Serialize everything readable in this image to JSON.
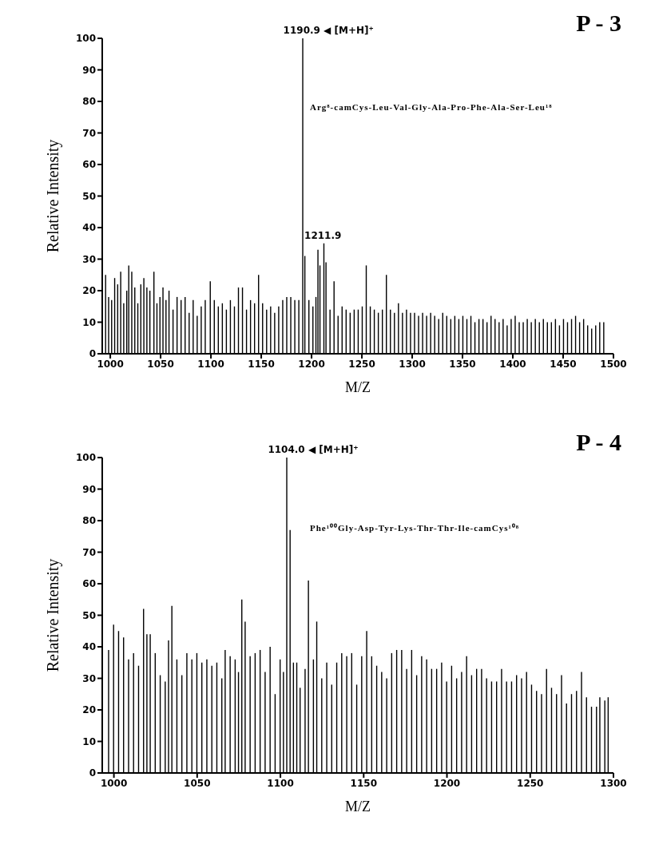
{
  "chart_data": [
    {
      "type": "bar",
      "title": "P - 3",
      "xlabel": "M/Z",
      "ylabel": "Relative  Intensity",
      "x": [
        995,
        998,
        1001,
        1004,
        1007,
        1010,
        1013,
        1016,
        1018,
        1021,
        1024,
        1027,
        1030,
        1033,
        1036,
        1039,
        1043,
        1046,
        1049,
        1052,
        1055,
        1058,
        1062,
        1066,
        1070,
        1074,
        1078,
        1082,
        1086,
        1090,
        1094,
        1099,
        1103,
        1107,
        1111,
        1115,
        1119,
        1123,
        1127,
        1131,
        1135,
        1139,
        1143,
        1147,
        1151,
        1155,
        1159,
        1163,
        1167,
        1171,
        1175,
        1179,
        1183,
        1187,
        1190.9,
        1193,
        1197,
        1201,
        1204,
        1206,
        1208,
        1211.9,
        1214,
        1218,
        1222,
        1226,
        1230,
        1234,
        1238,
        1242,
        1246,
        1250,
        1254,
        1258,
        1262,
        1266,
        1270,
        1274,
        1278,
        1282,
        1286,
        1290,
        1294,
        1298,
        1302,
        1306,
        1310,
        1314,
        1318,
        1322,
        1326,
        1330,
        1334,
        1338,
        1342,
        1346,
        1350,
        1354,
        1358,
        1362,
        1366,
        1370,
        1374,
        1378,
        1382,
        1386,
        1390,
        1394,
        1398,
        1402,
        1406,
        1410,
        1414,
        1418,
        1422,
        1426,
        1430,
        1434,
        1438,
        1442,
        1446,
        1450,
        1454,
        1458,
        1462,
        1466,
        1470,
        1474,
        1478,
        1482,
        1486,
        1490
      ],
      "series": [
        {
          "color": "#000000",
          "values": [
            25,
            18,
            17,
            24,
            22,
            26,
            16,
            20,
            28,
            26,
            21,
            16,
            22,
            24,
            21,
            20,
            26,
            16,
            18,
            21,
            17,
            20,
            14,
            18,
            17,
            18,
            13,
            17,
            12,
            15,
            17,
            23,
            17,
            15,
            16,
            14,
            17,
            15,
            21,
            21,
            14,
            17,
            16,
            25,
            16,
            14,
            15,
            13,
            15,
            17,
            18,
            18,
            17,
            17,
            100,
            31,
            17,
            15,
            18,
            33,
            28,
            35,
            29,
            14,
            23,
            12,
            15,
            14,
            13,
            14,
            14,
            15,
            28,
            15,
            14,
            13,
            14,
            25,
            14,
            13,
            16,
            13,
            14,
            13,
            13,
            12,
            13,
            12,
            13,
            12,
            11,
            13,
            12,
            11,
            12,
            11,
            12,
            11,
            12,
            10,
            11,
            11,
            10,
            12,
            11,
            10,
            11,
            9,
            11,
            12,
            10,
            10,
            11,
            10,
            11,
            10,
            11,
            10,
            10,
            11,
            9,
            11,
            10,
            11,
            12,
            10,
            11,
            9,
            8,
            9,
            10,
            10
          ]
        }
      ],
      "xlim": [
        992,
        1500
      ],
      "xticks": [
        1000,
        1050,
        1100,
        1150,
        1200,
        1250,
        1300,
        1350,
        1400,
        1450,
        1500
      ],
      "ylim": [
        0,
        100
      ],
      "yticks": [
        0,
        10,
        20,
        30,
        40,
        50,
        60,
        70,
        80,
        90,
        100
      ],
      "annotations": [
        {
          "text": "1190.9 ◀ [M+H]⁺",
          "x": 1190.9,
          "y": 100
        },
        {
          "text": "1211.9",
          "x": 1211.9,
          "y": 35
        },
        "Arg⁸-camCys-Leu-Val-Gly-Ala-Pro-Phe-Ala-Ser-Leu¹⁸"
      ]
    },
    {
      "type": "bar",
      "title": "P - 4",
      "xlabel": "M/Z",
      "ylabel": "Relative  Intensity",
      "x": [
        997,
        1000,
        1003,
        1006,
        1009,
        1012,
        1015,
        1018,
        1020,
        1022,
        1025,
        1028,
        1031,
        1033,
        1035,
        1038,
        1041,
        1044,
        1047,
        1050,
        1053,
        1056,
        1059,
        1062,
        1065,
        1067,
        1070,
        1073,
        1075,
        1077,
        1079,
        1082,
        1085,
        1088,
        1091,
        1094,
        1097,
        1100,
        1102,
        1104,
        1106,
        1108,
        1110,
        1112,
        1115,
        1117,
        1120,
        1122,
        1125,
        1128,
        1131,
        1134,
        1137,
        1140,
        1143,
        1146,
        1149,
        1152,
        1155,
        1158,
        1161,
        1164,
        1167,
        1170,
        1173,
        1176,
        1179,
        1182,
        1185,
        1188,
        1191,
        1194,
        1197,
        1200,
        1203,
        1206,
        1209,
        1212,
        1215,
        1218,
        1221,
        1224,
        1227,
        1230,
        1233,
        1236,
        1239,
        1242,
        1245,
        1248,
        1251,
        1254,
        1257,
        1260,
        1263,
        1266,
        1269,
        1272,
        1275,
        1278,
        1281,
        1284,
        1287,
        1290,
        1292,
        1295,
        1297
      ],
      "series": [
        {
          "color": "#000000",
          "values": [
            39,
            47,
            45,
            43,
            36,
            38,
            34,
            52,
            44,
            44,
            38,
            31,
            29,
            42,
            53,
            36,
            31,
            38,
            36,
            38,
            35,
            36,
            34,
            35,
            30,
            39,
            37,
            36,
            32,
            55,
            48,
            37,
            38,
            39,
            32,
            40,
            25,
            36,
            32,
            100,
            77,
            35,
            35,
            27,
            33,
            61,
            36,
            48,
            30,
            35,
            28,
            35,
            38,
            37,
            38,
            28,
            37,
            45,
            37,
            34,
            32,
            30,
            38,
            39,
            39,
            33,
            39,
            31,
            37,
            36,
            33,
            33,
            35,
            29,
            34,
            30,
            32,
            37,
            31,
            33,
            33,
            30,
            29,
            29,
            33,
            29,
            29,
            31,
            30,
            32,
            28,
            26,
            25,
            33,
            27,
            25,
            31,
            22,
            25,
            26,
            32,
            24,
            21,
            21,
            24,
            23,
            24
          ]
        }
      ],
      "xlim": [
        993,
        1300
      ],
      "xticks": [
        1000,
        1050,
        1100,
        1150,
        1200,
        1250,
        1300
      ],
      "ylim": [
        0,
        100
      ],
      "yticks": [
        0,
        10,
        20,
        30,
        40,
        50,
        60,
        70,
        80,
        90,
        100
      ],
      "annotations": [
        {
          "text": "1104.0 ◀ [M+H]⁺",
          "x": 1104,
          "y": 100
        },
        "Phe¹⁰⁰Gly-Asp-Tyr-Lys-Thr-Thr-Ile-camCys¹⁰⁸"
      ]
    }
  ]
}
